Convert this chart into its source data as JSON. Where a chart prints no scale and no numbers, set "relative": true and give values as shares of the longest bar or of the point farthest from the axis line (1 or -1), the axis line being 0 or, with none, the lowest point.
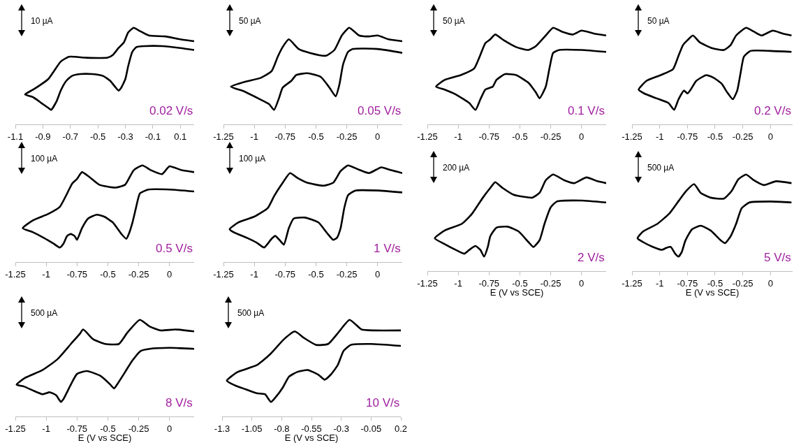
{
  "chart_data": [
    {
      "type": "line",
      "relative": true,
      "xlim": [
        -1.1,
        0.2
      ],
      "xticks": [
        -1.1,
        -0.9,
        -0.7,
        -0.5,
        -0.3,
        -0.1,
        0.1
      ],
      "annotations": [
        "10 µA",
        "0.02 V/s"
      ],
      "series": [
        {
          "color": "#000000",
          "x": [
            0.2,
            0.1,
            -0.03,
            -0.16,
            -0.22,
            -0.25,
            -0.28,
            -0.3,
            -0.33,
            -0.35,
            -0.37,
            -0.41,
            -0.46,
            -0.54,
            -0.63,
            -0.69,
            -0.73,
            -0.77,
            -0.8,
            -0.84,
            -0.86,
            -0.91,
            -0.97,
            -1.03,
            -0.97,
            -0.86,
            -0.82,
            -0.77,
            -0.71,
            -0.59,
            -0.43,
            -0.39,
            -0.35,
            -0.31,
            -0.28,
            -0.24,
            -0.2,
            -0.13,
            -0.01,
            0.1,
            0.2
          ],
          "values": [
            0.77,
            0.79,
            0.81,
            0.81,
            0.8,
            0.75,
            0.6,
            0.47,
            0.38,
            0.35,
            0.38,
            0.45,
            0.5,
            0.52,
            0.52,
            0.5,
            0.45,
            0.35,
            0.24,
            0.15,
            0.17,
            0.22,
            0.28,
            0.31,
            0.36,
            0.47,
            0.55,
            0.65,
            0.7,
            0.69,
            0.69,
            0.72,
            0.79,
            0.85,
            0.95,
            1,
            0.97,
            0.92,
            0.91,
            0.88,
            0.86
          ]
        }
      ]
    },
    {
      "type": "line",
      "relative": true,
      "xlim": [
        -1.25,
        0.2
      ],
      "xticks": [
        -1.25,
        -1,
        -0.75,
        -0.5,
        -0.25,
        0
      ],
      "annotations": [
        "50 µA",
        "0.05 V/s"
      ],
      "series": [
        {
          "color": "#000000",
          "x": [
            0.2,
            0,
            -0.2,
            -0.24,
            -0.28,
            -0.31,
            -0.34,
            -0.39,
            -0.46,
            -0.57,
            -0.66,
            -0.7,
            -0.77,
            -0.8,
            -0.84,
            -0.88,
            -0.97,
            -1.08,
            -1.19,
            -1.08,
            -0.95,
            -0.86,
            -0.81,
            -0.77,
            -0.72,
            -0.64,
            -0.55,
            -0.42,
            -0.35,
            -0.29,
            -0.23,
            -0.15,
            -0.07,
            0,
            0.09,
            0.2
          ],
          "values": [
            0.74,
            0.78,
            0.78,
            0.75,
            0.62,
            0.41,
            0.29,
            0.38,
            0.49,
            0.53,
            0.51,
            0.45,
            0.38,
            0.27,
            0.15,
            0.21,
            0.27,
            0.34,
            0.39,
            0.44,
            0.48,
            0.55,
            0.7,
            0.8,
            0.88,
            0.78,
            0.74,
            0.71,
            0.77,
            0.92,
            1,
            0.92,
            0.91,
            0.92,
            0.88,
            0.86
          ]
        }
      ]
    },
    {
      "type": "line",
      "relative": true,
      "xlim": [
        -1.25,
        0.2
      ],
      "xticks": [
        -1.25,
        -1,
        -0.75,
        -0.5,
        -0.25,
        0
      ],
      "annotations": [
        "50 µA",
        "0.1 V/s"
      ],
      "series": [
        {
          "color": "#000000",
          "x": [
            0.2,
            0,
            -0.18,
            -0.23,
            -0.26,
            -0.29,
            -0.34,
            -0.37,
            -0.43,
            -0.53,
            -0.62,
            -0.69,
            -0.72,
            -0.78,
            -0.82,
            -0.86,
            -0.91,
            -1.02,
            -1.11,
            -1.18,
            -1.11,
            -0.98,
            -0.87,
            -0.82,
            -0.78,
            -0.74,
            -0.7,
            -0.63,
            -0.53,
            -0.43,
            -0.37,
            -0.29,
            -0.23,
            -0.16,
            -0.07,
            0,
            0.1,
            0.2
          ],
          "values": [
            0.75,
            0.77,
            0.77,
            0.74,
            0.58,
            0.39,
            0.27,
            0.33,
            0.43,
            0.51,
            0.52,
            0.46,
            0.39,
            0.36,
            0.26,
            0.15,
            0.22,
            0.31,
            0.36,
            0.39,
            0.46,
            0.51,
            0.58,
            0.72,
            0.84,
            0.88,
            0.93,
            0.87,
            0.8,
            0.77,
            0.81,
            0.92,
            1,
            0.96,
            0.93,
            0.97,
            0.94,
            0.92
          ]
        }
      ]
    },
    {
      "type": "line",
      "relative": true,
      "xlim": [
        -1.25,
        0.2
      ],
      "xticks": [
        -1.25,
        -1,
        -0.75,
        -0.5,
        -0.25,
        0
      ],
      "annotations": [
        "50 µA",
        "0.2 V/s"
      ],
      "series": [
        {
          "color": "#000000",
          "x": [
            0.19,
            0,
            -0.18,
            -0.24,
            -0.27,
            -0.3,
            -0.34,
            -0.39,
            -0.44,
            -0.51,
            -0.58,
            -0.67,
            -0.72,
            -0.75,
            -0.78,
            -0.83,
            -0.87,
            -0.92,
            -1.03,
            -1.14,
            -1.19,
            -1.12,
            -0.99,
            -0.88,
            -0.83,
            -0.79,
            -0.75,
            -0.7,
            -0.64,
            -0.53,
            -0.42,
            -0.36,
            -0.31,
            -0.22,
            -0.15,
            -0.08,
            0.02,
            0.11,
            0.19
          ],
          "values": [
            0.75,
            0.76,
            0.76,
            0.7,
            0.53,
            0.35,
            0.26,
            0.33,
            0.42,
            0.48,
            0.51,
            0.45,
            0.36,
            0.32,
            0.35,
            0.26,
            0.15,
            0.22,
            0.27,
            0.32,
            0.36,
            0.45,
            0.51,
            0.57,
            0.71,
            0.82,
            0.87,
            0.92,
            0.85,
            0.79,
            0.77,
            0.82,
            0.92,
            1,
            0.96,
            0.92,
            0.97,
            0.94,
            0.92
          ]
        }
      ]
    },
    {
      "type": "line",
      "relative": true,
      "xlim": [
        -1.25,
        0.2
      ],
      "xticks": [
        -1.25,
        -1,
        -0.75,
        -0.5,
        -0.25,
        0
      ],
      "annotations": [
        "100 µA",
        "0.5 V/s"
      ],
      "series": [
        {
          "color": "#000000",
          "x": [
            0.2,
            0,
            -0.17,
            -0.24,
            -0.27,
            -0.3,
            -0.33,
            -0.35,
            -0.39,
            -0.46,
            -0.53,
            -0.59,
            -0.66,
            -0.71,
            -0.75,
            -0.77,
            -0.8,
            -0.83,
            -0.86,
            -0.89,
            -0.94,
            -1.02,
            -1.11,
            -1.19,
            -1.11,
            -0.98,
            -0.89,
            -0.83,
            -0.79,
            -0.75,
            -0.71,
            -0.65,
            -0.57,
            -0.44,
            -0.36,
            -0.29,
            -0.22,
            -0.15,
            -0.06,
            0,
            0.1,
            0.2
          ],
          "values": [
            0.73,
            0.75,
            0.75,
            0.71,
            0.57,
            0.41,
            0.29,
            0.24,
            0.29,
            0.41,
            0.47,
            0.49,
            0.45,
            0.35,
            0.23,
            0.27,
            0.29,
            0.27,
            0.19,
            0.15,
            0.19,
            0.25,
            0.31,
            0.35,
            0.43,
            0.5,
            0.57,
            0.71,
            0.81,
            0.86,
            0.93,
            0.88,
            0.8,
            0.77,
            0.8,
            0.95,
            1,
            0.95,
            0.91,
            0.99,
            0.95,
            0.93
          ]
        }
      ]
    },
    {
      "type": "line",
      "relative": true,
      "xlim": [
        -1.25,
        0.2
      ],
      "xticks": [
        -1.25,
        -1,
        -0.75,
        -0.5,
        -0.25,
        0
      ],
      "annotations": [
        "100 µA",
        "1 V/s"
      ],
      "series": [
        {
          "color": "#000000",
          "x": [
            0.2,
            0,
            -0.18,
            -0.24,
            -0.27,
            -0.3,
            -0.33,
            -0.36,
            -0.41,
            -0.48,
            -0.59,
            -0.68,
            -0.72,
            -0.76,
            -0.79,
            -0.83,
            -0.86,
            -0.92,
            -0.98,
            -1.06,
            -1.17,
            -1.2,
            -1.13,
            -1,
            -0.89,
            -0.84,
            -0.78,
            -0.71,
            -0.65,
            -0.57,
            -0.44,
            -0.36,
            -0.3,
            -0.24,
            -0.16,
            -0.07,
            0.03,
            0.11,
            0.2
          ],
          "values": [
            0.72,
            0.74,
            0.74,
            0.69,
            0.56,
            0.35,
            0.25,
            0.23,
            0.3,
            0.41,
            0.46,
            0.45,
            0.35,
            0.18,
            0.22,
            0.27,
            0.24,
            0.15,
            0.2,
            0.25,
            0.31,
            0.34,
            0.41,
            0.47,
            0.56,
            0.68,
            0.8,
            0.92,
            0.87,
            0.82,
            0.79,
            0.82,
            0.94,
            1,
            0.96,
            0.92,
            0.98,
            0.95,
            0.92
          ]
        }
      ]
    },
    {
      "type": "line",
      "relative": true,
      "xlim": [
        -1.25,
        0.2
      ],
      "xticks": [
        -1.25,
        -1,
        -0.75,
        -0.5,
        -0.25,
        0
      ],
      "xlabel": "E (V vs SCE)",
      "annotations": [
        "200 µA",
        "2 V/s"
      ],
      "series": [
        {
          "color": "#000000",
          "x": [
            0.2,
            0,
            -0.2,
            -0.25,
            -0.3,
            -0.34,
            -0.39,
            -0.43,
            -0.51,
            -0.6,
            -0.69,
            -0.74,
            -0.76,
            -0.79,
            -0.82,
            -0.86,
            -0.91,
            -0.95,
            -1.02,
            -1.11,
            -1.19,
            -1.11,
            -0.97,
            -0.89,
            -0.8,
            -0.74,
            -0.7,
            -0.64,
            -0.55,
            -0.4,
            -0.34,
            -0.29,
            -0.23,
            -0.14,
            -0.06,
            0.04,
            0.13,
            0.2
          ],
          "values": [
            0.71,
            0.73,
            0.72,
            0.66,
            0.49,
            0.32,
            0.25,
            0.3,
            0.41,
            0.46,
            0.45,
            0.36,
            0.25,
            0.15,
            0.22,
            0.26,
            0.22,
            0.18,
            0.22,
            0.28,
            0.34,
            0.42,
            0.49,
            0.59,
            0.76,
            0.86,
            0.92,
            0.86,
            0.79,
            0.76,
            0.81,
            0.94,
            1,
            0.94,
            0.91,
            0.97,
            0.93,
            0.91
          ]
        }
      ]
    },
    {
      "type": "line",
      "relative": true,
      "xlim": [
        -1.25,
        0.2
      ],
      "xticks": [
        -1.25,
        -1,
        -0.75,
        -0.5,
        -0.25,
        0
      ],
      "xlabel": "E (V vs SCE)",
      "annotations": [
        "500 µA",
        "5 V/s"
      ],
      "series": [
        {
          "color": "#000000",
          "x": [
            0.19,
            0,
            -0.19,
            -0.26,
            -0.31,
            -0.36,
            -0.41,
            -0.45,
            -0.54,
            -0.63,
            -0.71,
            -0.77,
            -0.8,
            -0.83,
            -0.86,
            -0.9,
            -0.94,
            -0.98,
            -1.06,
            -1.15,
            -1.2,
            -1.15,
            -1.02,
            -0.91,
            -0.82,
            -0.76,
            -0.69,
            -0.63,
            -0.54,
            -0.42,
            -0.35,
            -0.29,
            -0.22,
            -0.15,
            -0.06,
            0.05,
            0.19
          ],
          "values": [
            0.71,
            0.72,
            0.71,
            0.65,
            0.49,
            0.36,
            0.29,
            0.32,
            0.42,
            0.47,
            0.43,
            0.31,
            0.2,
            0.15,
            0.18,
            0.25,
            0.24,
            0.22,
            0.25,
            0.3,
            0.34,
            0.41,
            0.49,
            0.6,
            0.74,
            0.83,
            0.9,
            0.81,
            0.76,
            0.75,
            0.83,
            0.95,
            1,
            0.94,
            0.89,
            0.93,
            0.91
          ]
        }
      ]
    },
    {
      "type": "line",
      "relative": true,
      "xlim": [
        -1.25,
        0.2
      ],
      "xticks": [
        -1.25,
        -1,
        -0.75,
        -0.5,
        -0.25,
        0
      ],
      "xlabel": "E (V vs SCE)",
      "annotations": [
        "500 µA",
        "8 V/s"
      ],
      "series": [
        {
          "color": "#000000",
          "x": [
            0.2,
            0,
            -0.16,
            -0.23,
            -0.3,
            -0.36,
            -0.42,
            -0.45,
            -0.48,
            -0.56,
            -0.67,
            -0.75,
            -0.8,
            -0.86,
            -0.88,
            -0.92,
            -0.97,
            -1.03,
            -1.11,
            -1.18,
            -1.24,
            -1.17,
            -1.03,
            -0.91,
            -0.8,
            -0.73,
            -0.7,
            -0.62,
            -0.52,
            -0.41,
            -0.34,
            -0.24,
            -0.16,
            -0.07,
            0.05,
            0.2
          ],
          "values": [
            0.7,
            0.71,
            0.7,
            0.68,
            0.58,
            0.46,
            0.34,
            0.29,
            0.33,
            0.42,
            0.47,
            0.44,
            0.33,
            0.18,
            0.15,
            0.22,
            0.25,
            0.23,
            0.27,
            0.31,
            0.33,
            0.4,
            0.48,
            0.59,
            0.75,
            0.85,
            0.9,
            0.8,
            0.75,
            0.75,
            0.87,
            1,
            0.93,
            0.89,
            0.9,
            0.88
          ]
        }
      ]
    },
    {
      "type": "line",
      "relative": true,
      "xlim": [
        -1.3,
        0.2
      ],
      "xticks": [
        -1.3,
        -1.05,
        -0.8,
        -0.55,
        -0.3,
        -0.05,
        0.2
      ],
      "xlabel": "E (V vs SCE)",
      "annotations": [
        "500 µA",
        "10 V/s"
      ],
      "series": [
        {
          "color": "#000000",
          "x": [
            0.2,
            -0.05,
            -0.22,
            -0.28,
            -0.33,
            -0.39,
            -0.44,
            -0.49,
            -0.58,
            -0.67,
            -0.74,
            -0.79,
            -0.85,
            -0.89,
            -0.94,
            -1.01,
            -1.1,
            -1.19,
            -1.26,
            -1.17,
            -1.01,
            -0.9,
            -0.78,
            -0.69,
            -0.61,
            -0.51,
            -0.41,
            -0.33,
            -0.23,
            -0.13,
            -0.02,
            0.2
          ],
          "values": [
            0.73,
            0.75,
            0.74,
            0.68,
            0.53,
            0.43,
            0.38,
            0.43,
            0.48,
            0.46,
            0.41,
            0.3,
            0.2,
            0.15,
            0.23,
            0.24,
            0.28,
            0.32,
            0.37,
            0.46,
            0.53,
            0.64,
            0.8,
            0.88,
            0.81,
            0.74,
            0.75,
            0.86,
            1,
            0.9,
            0.89,
            0.89
          ]
        }
      ]
    }
  ]
}
